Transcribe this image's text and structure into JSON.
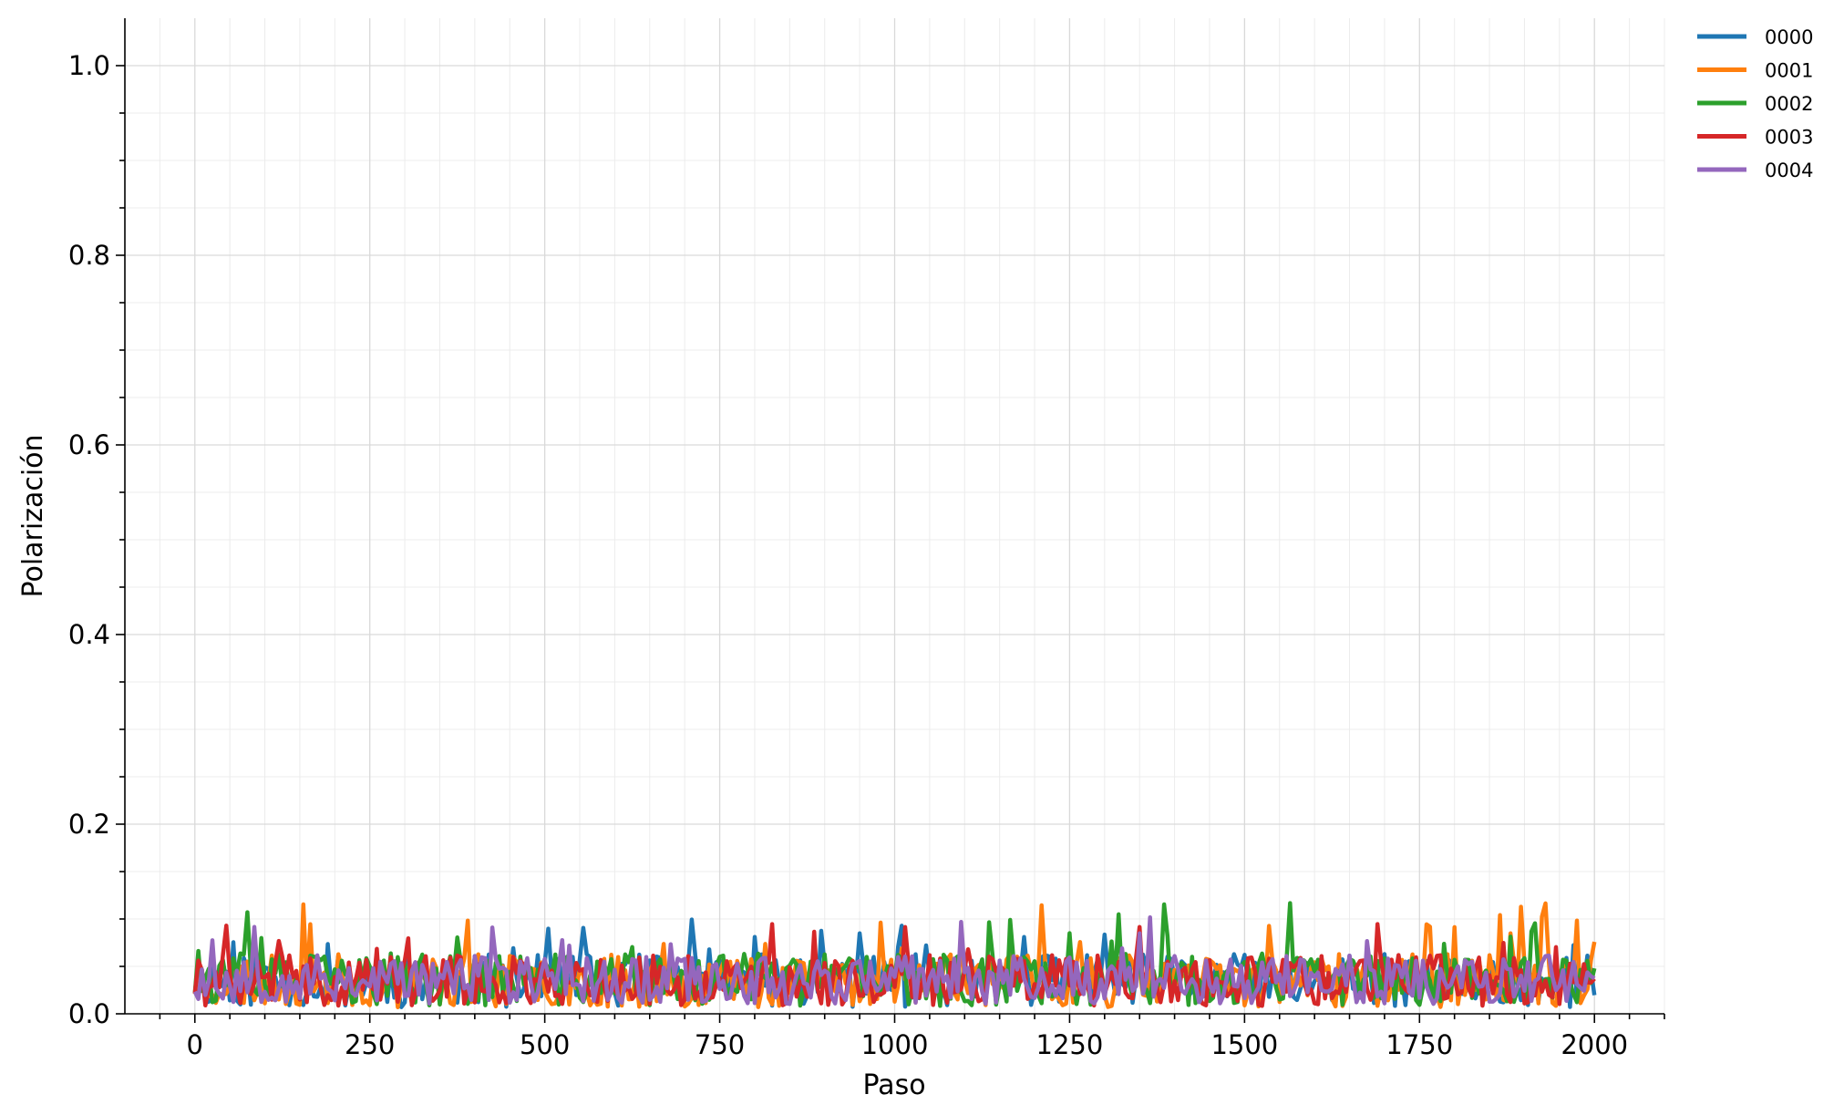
{
  "chart_data": {
    "type": "line",
    "title": "",
    "xlabel": "Paso",
    "ylabel": "Polarización",
    "xlim": [
      -100,
      2100
    ],
    "ylim": [
      0,
      1.05
    ],
    "xticks": [
      0,
      250,
      500,
      750,
      1000,
      1250,
      1500,
      1750,
      2000
    ],
    "xtick_labels": [
      "0",
      "250",
      "500",
      "750",
      "1000",
      "1250",
      "1500",
      "1750",
      "2000"
    ],
    "yticks": [
      0.0,
      0.2,
      0.4,
      0.6,
      0.8,
      1.0
    ],
    "ytick_labels": [
      "0.0",
      "0.2",
      "0.4",
      "0.6",
      "0.8",
      "1.0"
    ],
    "grid": "on (major and minor)",
    "legend_position": "outside-top-right",
    "x": {
      "start": 0,
      "end": 2000,
      "step": 5
    },
    "series": [
      {
        "name": "0000",
        "color": "#1f77b4",
        "mean": 0.035,
        "amplitude": 0.028,
        "max": 0.104,
        "seed": 11
      },
      {
        "name": "0001",
        "color": "#ff7f0e",
        "mean": 0.035,
        "amplitude": 0.028,
        "max": 0.119,
        "seed": 23
      },
      {
        "name": "0002",
        "color": "#2ca02c",
        "mean": 0.036,
        "amplitude": 0.028,
        "max": 0.117,
        "seed": 37
      },
      {
        "name": "0003",
        "color": "#d62728",
        "mean": 0.035,
        "amplitude": 0.027,
        "max": 0.098,
        "seed": 41
      },
      {
        "name": "0004",
        "color": "#9467bd",
        "mean": 0.036,
        "amplitude": 0.026,
        "max": 0.102,
        "seed": 53
      }
    ]
  }
}
